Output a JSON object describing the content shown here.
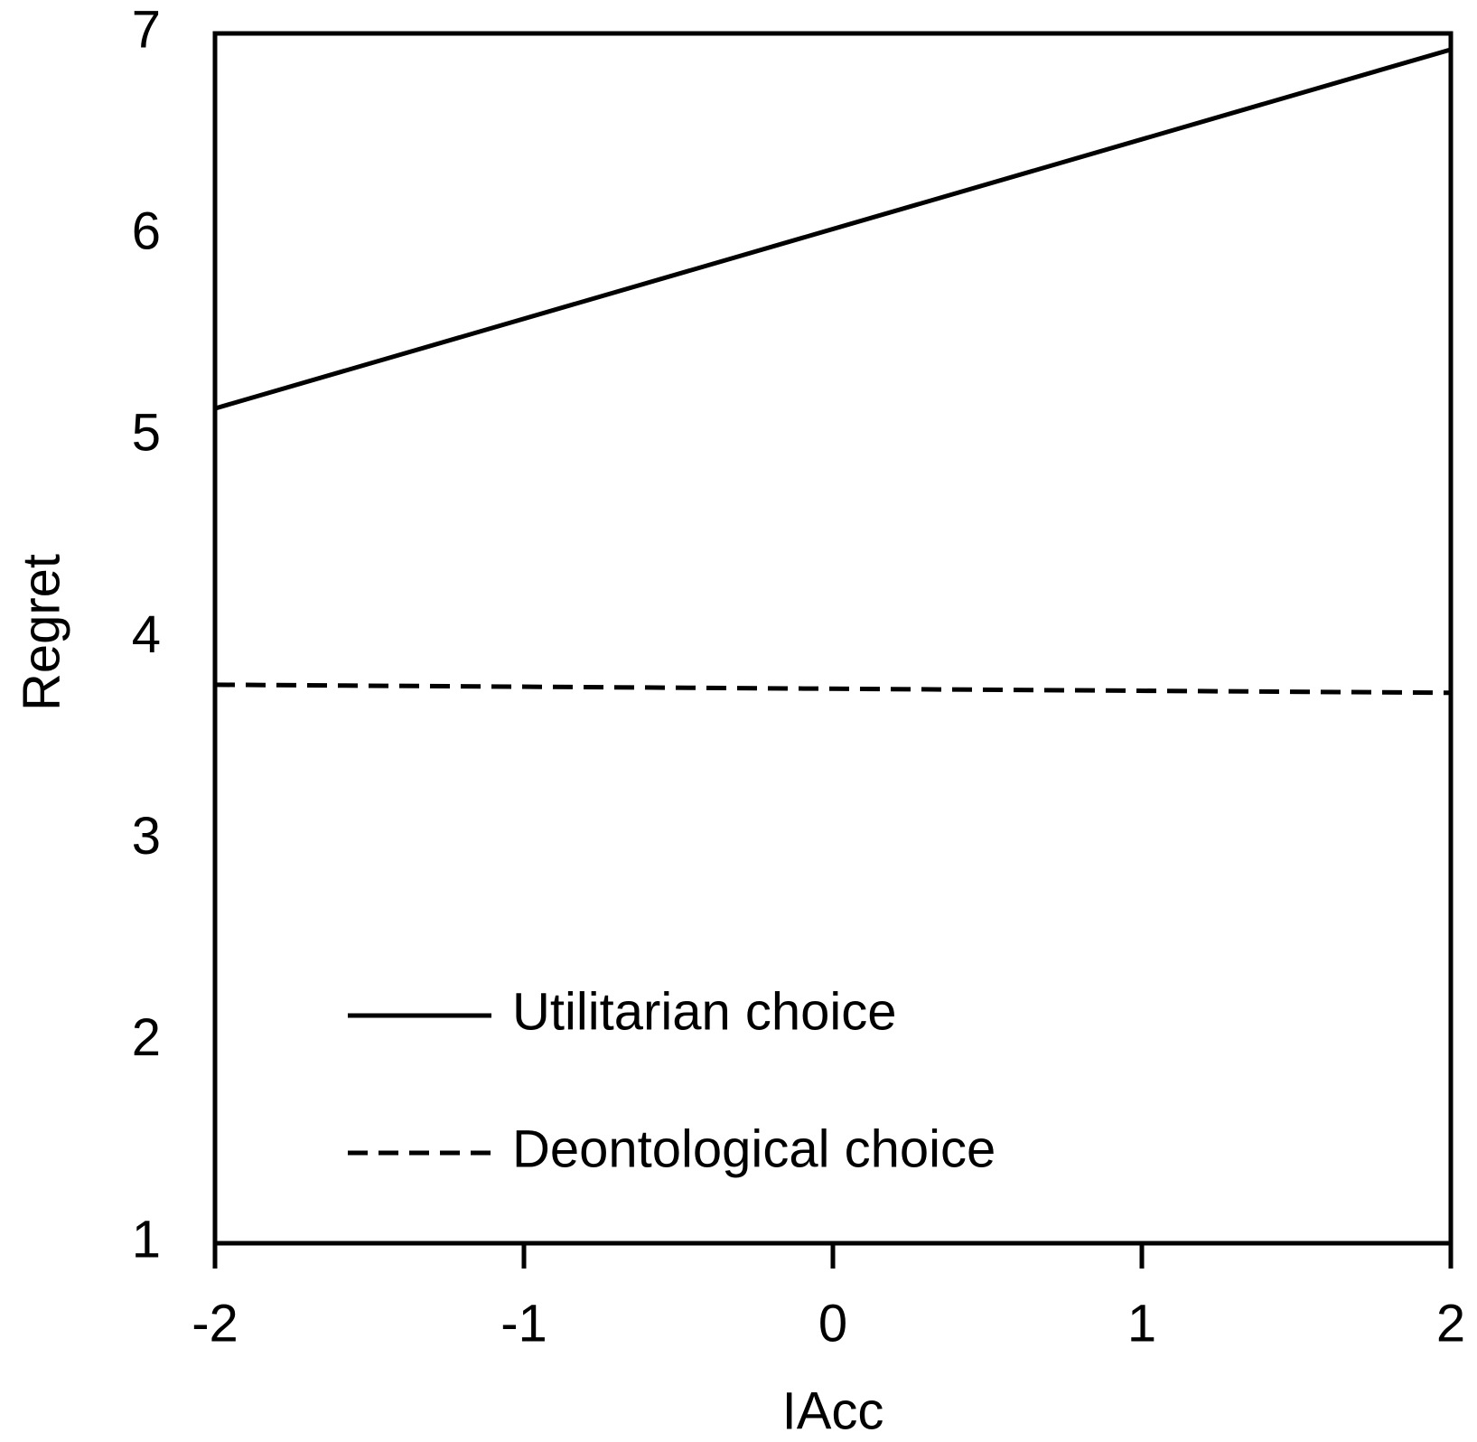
{
  "chart_data": {
    "type": "line",
    "x_label": "IAcc",
    "y_label": "Regret",
    "x": [
      -2,
      2
    ],
    "series": [
      {
        "name": "Utilitarian choice",
        "color": "#000000",
        "linestyle": "solid",
        "values": [
          5.14,
          6.92
        ]
      },
      {
        "name": "Deontological choice",
        "color": "#000000",
        "linestyle": "dashed",
        "values": [
          3.77,
          3.73
        ]
      }
    ],
    "xlim": [
      -2,
      2
    ],
    "xticks": [
      -2,
      -1,
      0,
      1,
      2
    ],
    "ylim": [
      1,
      7
    ],
    "yticks": [
      1,
      2,
      3,
      4,
      5,
      6,
      7
    ],
    "grid": false,
    "legend": "lower left"
  }
}
